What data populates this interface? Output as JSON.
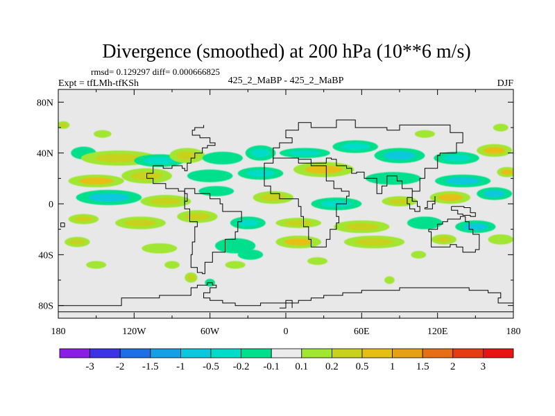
{
  "chart_data": {
    "type": "heatmap",
    "title": "Divergence (smoothed) at 200 hPa (10**6 m/s)",
    "stats_label": "rmsd= 0.129297 diff= 0.000666825",
    "left_label": "Expt = tfLMh-tfKSh",
    "center_label": "425_2_MaBP - 425_2_MaBP",
    "right_label": "DJF",
    "xlim": [
      -180,
      180
    ],
    "ylim": [
      -90,
      90
    ],
    "x_ticks": [
      -180,
      -120,
      -60,
      0,
      60,
      120,
      180
    ],
    "x_tick_labels": [
      "180",
      "120W",
      "60W",
      "0",
      "60E",
      "120E",
      "180"
    ],
    "y_ticks": [
      80,
      40,
      0,
      -40,
      -80
    ],
    "y_tick_labels": [
      "80N",
      "40N",
      "0",
      "40S",
      "80S"
    ],
    "colorbar": {
      "colors": [
        "#8a1ee6",
        "#3c32e6",
        "#1e6ee6",
        "#14a0e6",
        "#0cc8dc",
        "#00dcc8",
        "#00e08c",
        "#ebebeb",
        "#a0e632",
        "#c8d21e",
        "#e6bf14",
        "#e6a014",
        "#e66e14",
        "#e63c14",
        "#e61414"
      ],
      "labels": [
        "-3",
        "-2",
        "-1.5",
        "-1",
        "-0.5",
        "-0.2",
        "-0.1",
        "0.1",
        "0.2",
        "0.5",
        "1",
        "1.5",
        "2",
        "3"
      ]
    },
    "blobs": [
      {
        "lon": -176,
        "lat": 62,
        "rx": 5,
        "ry": 3,
        "level": 0.25
      },
      {
        "lon": -160,
        "lat": 40,
        "rx": 10,
        "ry": 5,
        "level": -0.15
      },
      {
        "lon": -145,
        "lat": 55,
        "rx": 7,
        "ry": 3,
        "level": 0.15
      },
      {
        "lon": -132,
        "lat": 36,
        "rx": 30,
        "ry": 6,
        "level": 0.2
      },
      {
        "lon": -100,
        "lat": 34,
        "rx": 20,
        "ry": 5,
        "level": -0.3
      },
      {
        "lon": -78,
        "lat": 38,
        "rx": 14,
        "ry": 6,
        "level": 0.3
      },
      {
        "lon": -50,
        "lat": 36,
        "rx": 16,
        "ry": 5,
        "level": -0.2
      },
      {
        "lon": -20,
        "lat": 40,
        "rx": 12,
        "ry": 6,
        "level": -0.4
      },
      {
        "lon": 15,
        "lat": 40,
        "rx": 20,
        "ry": 4,
        "level": -0.3
      },
      {
        "lon": 55,
        "lat": 45,
        "rx": 18,
        "ry": 5,
        "level": -0.25
      },
      {
        "lon": 90,
        "lat": 38,
        "rx": 20,
        "ry": 6,
        "level": -0.6
      },
      {
        "lon": 135,
        "lat": 36,
        "rx": 18,
        "ry": 5,
        "level": -0.3
      },
      {
        "lon": 165,
        "lat": 42,
        "rx": 14,
        "ry": 5,
        "level": 0.6
      },
      {
        "lon": 110,
        "lat": 55,
        "rx": 8,
        "ry": 3,
        "level": 0.15
      },
      {
        "lon": 170,
        "lat": 60,
        "rx": 6,
        "ry": 3,
        "level": 0.15
      },
      {
        "lon": -150,
        "lat": 18,
        "rx": 22,
        "ry": 5,
        "level": 0.5
      },
      {
        "lon": -110,
        "lat": 22,
        "rx": 20,
        "ry": 6,
        "level": 0.2
      },
      {
        "lon": -60,
        "lat": 22,
        "rx": 18,
        "ry": 5,
        "level": -0.2
      },
      {
        "lon": -20,
        "lat": 24,
        "rx": 18,
        "ry": 5,
        "level": -0.3
      },
      {
        "lon": 30,
        "lat": 27,
        "rx": 24,
        "ry": 6,
        "level": 0.8
      },
      {
        "lon": 85,
        "lat": 20,
        "rx": 22,
        "ry": 5,
        "level": -0.2
      },
      {
        "lon": 140,
        "lat": 18,
        "rx": 22,
        "ry": 5,
        "level": -0.7
      },
      {
        "lon": 175,
        "lat": 25,
        "rx": 8,
        "ry": 4,
        "level": 0.6
      },
      {
        "lon": -140,
        "lat": 5,
        "rx": 26,
        "ry": 6,
        "level": -0.7
      },
      {
        "lon": -95,
        "lat": 2,
        "rx": 20,
        "ry": 5,
        "level": 0.4
      },
      {
        "lon": -55,
        "lat": 10,
        "rx": 14,
        "ry": 4,
        "level": -0.15
      },
      {
        "lon": -10,
        "lat": 5,
        "rx": 16,
        "ry": 5,
        "level": 0.3
      },
      {
        "lon": 40,
        "lat": 0,
        "rx": 20,
        "ry": 5,
        "level": -0.4
      },
      {
        "lon": 90,
        "lat": 2,
        "rx": 14,
        "ry": 4,
        "level": 0.2
      },
      {
        "lon": 130,
        "lat": 5,
        "rx": 16,
        "ry": 5,
        "level": 0.7
      },
      {
        "lon": 165,
        "lat": 8,
        "rx": 14,
        "ry": 5,
        "level": -0.7
      },
      {
        "lon": -160,
        "lat": -12,
        "rx": 12,
        "ry": 4,
        "level": 0.2
      },
      {
        "lon": -115,
        "lat": -15,
        "rx": 20,
        "ry": 5,
        "level": 0.4
      },
      {
        "lon": -70,
        "lat": -10,
        "rx": 16,
        "ry": 5,
        "level": 0.25
      },
      {
        "lon": -30,
        "lat": -15,
        "rx": 14,
        "ry": 5,
        "level": -0.3
      },
      {
        "lon": 10,
        "lat": -15,
        "rx": 18,
        "ry": 4,
        "level": 0.2
      },
      {
        "lon": 60,
        "lat": -18,
        "rx": 22,
        "ry": 5,
        "level": 0.25
      },
      {
        "lon": 110,
        "lat": -15,
        "rx": 14,
        "ry": 5,
        "level": -0.2
      },
      {
        "lon": 150,
        "lat": -18,
        "rx": 16,
        "ry": 5,
        "level": -0.8
      },
      {
        "lon": -165,
        "lat": -30,
        "rx": 10,
        "ry": 4,
        "level": 0.25
      },
      {
        "lon": -100,
        "lat": -35,
        "rx": 14,
        "ry": 4,
        "level": 0.15
      },
      {
        "lon": -40,
        "lat": -33,
        "rx": 16,
        "ry": 6,
        "level": -0.2
      },
      {
        "lon": 10,
        "lat": -30,
        "rx": 18,
        "ry": 5,
        "level": 0.6
      },
      {
        "lon": 70,
        "lat": -30,
        "rx": 24,
        "ry": 5,
        "level": 0.3
      },
      {
        "lon": 125,
        "lat": -28,
        "rx": 10,
        "ry": 4,
        "level": 0.2
      },
      {
        "lon": 170,
        "lat": -28,
        "rx": 10,
        "ry": 4,
        "level": 0.15
      },
      {
        "lon": -150,
        "lat": -48,
        "rx": 8,
        "ry": 3,
        "level": 0.15
      },
      {
        "lon": -90,
        "lat": -48,
        "rx": 6,
        "ry": 3,
        "level": 0.15
      },
      {
        "lon": -40,
        "lat": -48,
        "rx": 8,
        "ry": 3,
        "level": 0.15
      },
      {
        "lon": -28,
        "lat": -40,
        "rx": 10,
        "ry": 4,
        "level": -0.15
      },
      {
        "lon": 25,
        "lat": -45,
        "rx": 8,
        "ry": 3,
        "level": 0.15
      },
      {
        "lon": 105,
        "lat": -40,
        "rx": 6,
        "ry": 3,
        "level": 0.15
      },
      {
        "lon": -75,
        "lat": -58,
        "rx": 5,
        "ry": 4,
        "level": 0.25
      },
      {
        "lon": -60,
        "lat": -62,
        "rx": 4,
        "ry": 3,
        "level": -0.15
      },
      {
        "lon": 82,
        "lat": -60,
        "rx": 4,
        "ry": 3,
        "level": 0.15
      }
    ],
    "coastlines": [
      [
        [
          -180,
          -80
        ],
        [
          -130,
          -80
        ],
        [
          -130,
          -74
        ],
        [
          -100,
          -74
        ],
        [
          -100,
          -72
        ],
        [
          -80,
          -72
        ],
        [
          -75,
          -66
        ],
        [
          -70,
          -64
        ],
        [
          -62,
          -62
        ],
        [
          -58,
          -64
        ],
        [
          -55,
          -66
        ],
        [
          -60,
          -70
        ],
        [
          -65,
          -74
        ],
        [
          -60,
          -76
        ],
        [
          -50,
          -78
        ],
        [
          -40,
          -80
        ],
        [
          -20,
          -78
        ],
        [
          0,
          -78
        ],
        [
          10,
          -76
        ],
        [
          20,
          -74
        ],
        [
          30,
          -72
        ],
        [
          45,
          -70
        ],
        [
          60,
          -68
        ],
        [
          75,
          -68
        ],
        [
          90,
          -66
        ],
        [
          110,
          -66
        ],
        [
          130,
          -66
        ],
        [
          145,
          -68
        ],
        [
          160,
          -70
        ],
        [
          170,
          -74
        ],
        [
          168,
          -78
        ],
        [
          180,
          -80
        ]
      ],
      [
        [
          -180,
          -85
        ],
        [
          180,
          -85
        ]
      ],
      [
        [
          -5,
          -82
        ],
        [
          0,
          -76
        ],
        [
          5,
          -82
        ]
      ],
      [
        [
          -10,
          35
        ],
        [
          -10,
          44
        ],
        [
          -5,
          48
        ],
        [
          5,
          52
        ],
        [
          0,
          58
        ],
        [
          10,
          64
        ],
        [
          20,
          60
        ],
        [
          30,
          60
        ],
        [
          40,
          66
        ],
        [
          55,
          60
        ],
        [
          70,
          60
        ],
        [
          80,
          58
        ],
        [
          90,
          62
        ],
        [
          110,
          62
        ],
        [
          130,
          56
        ],
        [
          140,
          48
        ],
        [
          135,
          40
        ],
        [
          122,
          38
        ],
        [
          120,
          28
        ],
        [
          110,
          20
        ],
        [
          106,
          10
        ],
        [
          100,
          2
        ],
        [
          100,
          12
        ],
        [
          92,
          18
        ],
        [
          88,
          22
        ],
        [
          80,
          14
        ],
        [
          76,
          8
        ],
        [
          72,
          20
        ],
        [
          62,
          25
        ],
        [
          56,
          24
        ],
        [
          52,
          28
        ],
        [
          48,
          30
        ],
        [
          40,
          35
        ],
        [
          36,
          36
        ],
        [
          32,
          32
        ],
        [
          20,
          35
        ],
        [
          10,
          36
        ],
        [
          0,
          36
        ],
        [
          -10,
          35
        ]
      ],
      [
        [
          -17,
          20
        ],
        [
          -17,
          14
        ],
        [
          -12,
          8
        ],
        [
          -5,
          4
        ],
        [
          8,
          4
        ],
        [
          10,
          -2
        ],
        [
          12,
          -10
        ],
        [
          14,
          -18
        ],
        [
          18,
          -28
        ],
        [
          20,
          -34
        ],
        [
          25,
          -34
        ],
        [
          32,
          -28
        ],
        [
          35,
          -20
        ],
        [
          40,
          -15
        ],
        [
          42,
          -10
        ],
        [
          40,
          0
        ],
        [
          48,
          6
        ],
        [
          50,
          10
        ],
        [
          44,
          12
        ],
        [
          38,
          18
        ],
        [
          32,
          30
        ],
        [
          20,
          32
        ],
        [
          10,
          36
        ],
        [
          0,
          36
        ],
        [
          -10,
          32
        ],
        [
          -17,
          20
        ]
      ],
      [
        [
          -80,
          8
        ],
        [
          -78,
          2
        ],
        [
          -80,
          -4
        ],
        [
          -76,
          -14
        ],
        [
          -70,
          -18
        ],
        [
          -72,
          -30
        ],
        [
          -74,
          -40
        ],
        [
          -75,
          -50
        ],
        [
          -70,
          -54
        ],
        [
          -66,
          -55
        ],
        [
          -64,
          -46
        ],
        [
          -58,
          -38
        ],
        [
          -48,
          -28
        ],
        [
          -40,
          -22
        ],
        [
          -38,
          -14
        ],
        [
          -35,
          -6
        ],
        [
          -50,
          0
        ],
        [
          -52,
          4
        ],
        [
          -60,
          8
        ],
        [
          -72,
          12
        ],
        [
          -80,
          8
        ]
      ],
      [
        [
          -80,
          0
        ],
        [
          -80,
          10
        ],
        [
          -85,
          12
        ],
        [
          -95,
          16
        ],
        [
          -105,
          20
        ],
        [
          -110,
          24
        ],
        [
          -105,
          30
        ],
        [
          -97,
          28
        ],
        [
          -90,
          30
        ],
        [
          -82,
          28
        ],
        [
          -80,
          26
        ],
        [
          -78,
          32
        ],
        [
          -75,
          36
        ],
        [
          -72,
          40
        ],
        [
          -66,
          44
        ],
        [
          -62,
          46
        ],
        [
          -56,
          48
        ],
        [
          -60,
          52
        ],
        [
          -68,
          54
        ],
        [
          -74,
          58
        ],
        [
          -72,
          60
        ],
        [
          -65,
          62
        ]
      ],
      [
        [
          113,
          -22
        ],
        [
          115,
          -34
        ],
        [
          120,
          -34
        ],
        [
          130,
          -32
        ],
        [
          135,
          -34
        ],
        [
          140,
          -38
        ],
        [
          146,
          -38
        ],
        [
          150,
          -36
        ],
        [
          153,
          -28
        ],
        [
          153,
          -24
        ],
        [
          148,
          -20
        ],
        [
          145,
          -14
        ],
        [
          142,
          -10
        ],
        [
          138,
          -12
        ],
        [
          136,
          -12
        ],
        [
          132,
          -12
        ],
        [
          128,
          -14
        ],
        [
          124,
          -16
        ],
        [
          120,
          -20
        ],
        [
          113,
          -22
        ]
      ],
      [
        [
          110,
          -3
        ],
        [
          112,
          2
        ],
        [
          118,
          6
        ],
        [
          118,
          0
        ],
        [
          116,
          -4
        ],
        [
          110,
          -3
        ]
      ],
      [
        [
          96,
          5
        ],
        [
          100,
          2
        ],
        [
          104,
          -2
        ],
        [
          106,
          -6
        ],
        [
          102,
          -4
        ],
        [
          98,
          0
        ],
        [
          96,
          5
        ]
      ],
      [
        [
          131,
          -2
        ],
        [
          134,
          -2
        ],
        [
          141,
          -3
        ],
        [
          146,
          -7
        ],
        [
          150,
          -10
        ],
        [
          146,
          -9
        ],
        [
          140,
          -8
        ],
        [
          136,
          -5
        ],
        [
          131,
          -2
        ]
      ],
      [
        [
          -175,
          -15
        ],
        [
          -178,
          -15
        ],
        [
          -178,
          -18
        ],
        [
          -175,
          -18
        ],
        [
          -175,
          -15
        ]
      ]
    ]
  }
}
